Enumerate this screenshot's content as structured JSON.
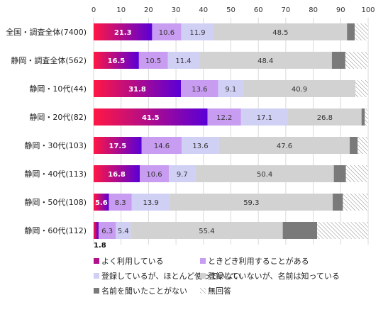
{
  "chart_data": {
    "type": "bar",
    "orientation": "horizontal",
    "stacked": true,
    "xlim": [
      0,
      100
    ],
    "x_ticks": [
      "0",
      "10",
      "20",
      "30",
      "40",
      "50",
      "60",
      "70",
      "80",
      "90",
      "100"
    ],
    "grid": true,
    "legend_position": "bottom",
    "categories": [
      "全国・調査全体(7400)",
      "静岡・調査全体(562)",
      "静岡・10代(44)",
      "静岡・20代(82)",
      "静岡・30代(103)",
      "静岡・40代(113)",
      "静岡・50代(108)",
      "静岡・60代(112)"
    ],
    "series": [
      {
        "name": "よく利用している",
        "color": "#c8106e",
        "values": [
          21.3,
          16.5,
          31.8,
          41.5,
          17.5,
          16.8,
          5.6,
          1.8
        ],
        "labels": [
          "21.3",
          "16.5",
          "31.8",
          "41.5",
          "17.5",
          "16.8",
          "5.6",
          "1.8"
        ]
      },
      {
        "name": "ときどき利用することがある",
        "color": "#c89cf0",
        "values": [
          10.6,
          10.5,
          13.6,
          12.2,
          14.6,
          10.6,
          8.3,
          6.3
        ],
        "labels": [
          "10.6",
          "10.5",
          "13.6",
          "12.2",
          "14.6",
          "10.6",
          "8.3",
          "6.3"
        ]
      },
      {
        "name": "登録しているが、ほとんど使っていない",
        "color": "#d0d0f5",
        "values": [
          11.9,
          11.4,
          9.1,
          17.1,
          13.6,
          9.7,
          13.9,
          5.4
        ],
        "labels": [
          "11.9",
          "11.4",
          "9.1",
          "17.1",
          "13.6",
          "9.7",
          "13.9",
          "5.4"
        ]
      },
      {
        "name": "登録していないが、名前は知っている",
        "color": "#d2d2d2",
        "values": [
          48.5,
          48.4,
          40.9,
          26.8,
          47.6,
          50.4,
          59.3,
          55.4
        ],
        "labels": [
          "48.5",
          "48.4",
          "40.9",
          "26.8",
          "47.6",
          "50.4",
          "59.3",
          "55.4"
        ]
      },
      {
        "name": "名前を聞いたことがない",
        "color": "#7a7a7a",
        "values": [
          2.8,
          4.9,
          0.0,
          1.2,
          2.9,
          4.4,
          3.7,
          12.5
        ],
        "labels": [
          "",
          "",
          "",
          "",
          "",
          "",
          "",
          ""
        ]
      },
      {
        "name": "無回答",
        "color": "hatch",
        "values": [
          4.9,
          8.3,
          4.6,
          1.2,
          3.8,
          8.1,
          9.2,
          18.6
        ],
        "labels": [
          "",
          "",
          "",
          "",
          "",
          "",
          "",
          ""
        ]
      }
    ]
  }
}
